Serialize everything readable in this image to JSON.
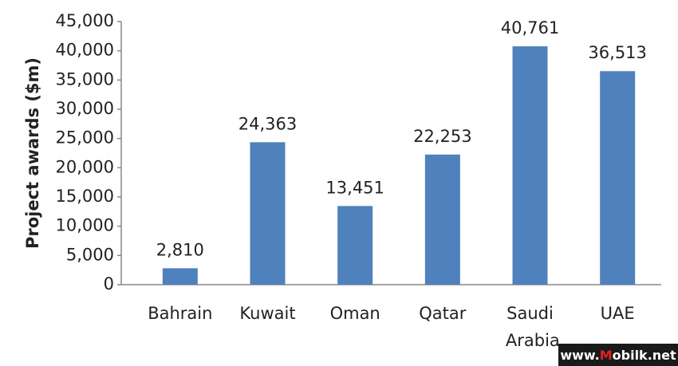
{
  "chart_data": {
    "type": "bar",
    "y_label": "Project awards ($m)",
    "categories": [
      "Bahrain",
      "Kuwait",
      "Oman",
      "Qatar",
      "Saudi Arabia",
      "UAE"
    ],
    "values": [
      2810,
      24363,
      13451,
      22253,
      40761,
      36513
    ],
    "value_labels": [
      "2,810",
      "24,363",
      "13,451",
      "22,253",
      "40,761",
      "36,513"
    ],
    "color": "#4f81bd",
    "ylim": [
      0,
      45000
    ],
    "yticks": [
      0,
      {
        "value": 5000,
        "label": "5,000"
      },
      {
        "value": 10000,
        "label": "10,000"
      },
      {
        "value": 15000,
        "label": "15,000"
      },
      {
        "value": 20000,
        "label": "20,000"
      },
      {
        "value": 25000,
        "label": "25,000"
      },
      {
        "value": 30000,
        "label": "30,000"
      },
      {
        "value": 35000,
        "label": "35,000"
      },
      {
        "value": 40000,
        "label": "40,000"
      },
      {
        "value": 45000,
        "label": "45,000"
      }
    ],
    "grid": false
  },
  "watermark": "www.Mobilk.net"
}
